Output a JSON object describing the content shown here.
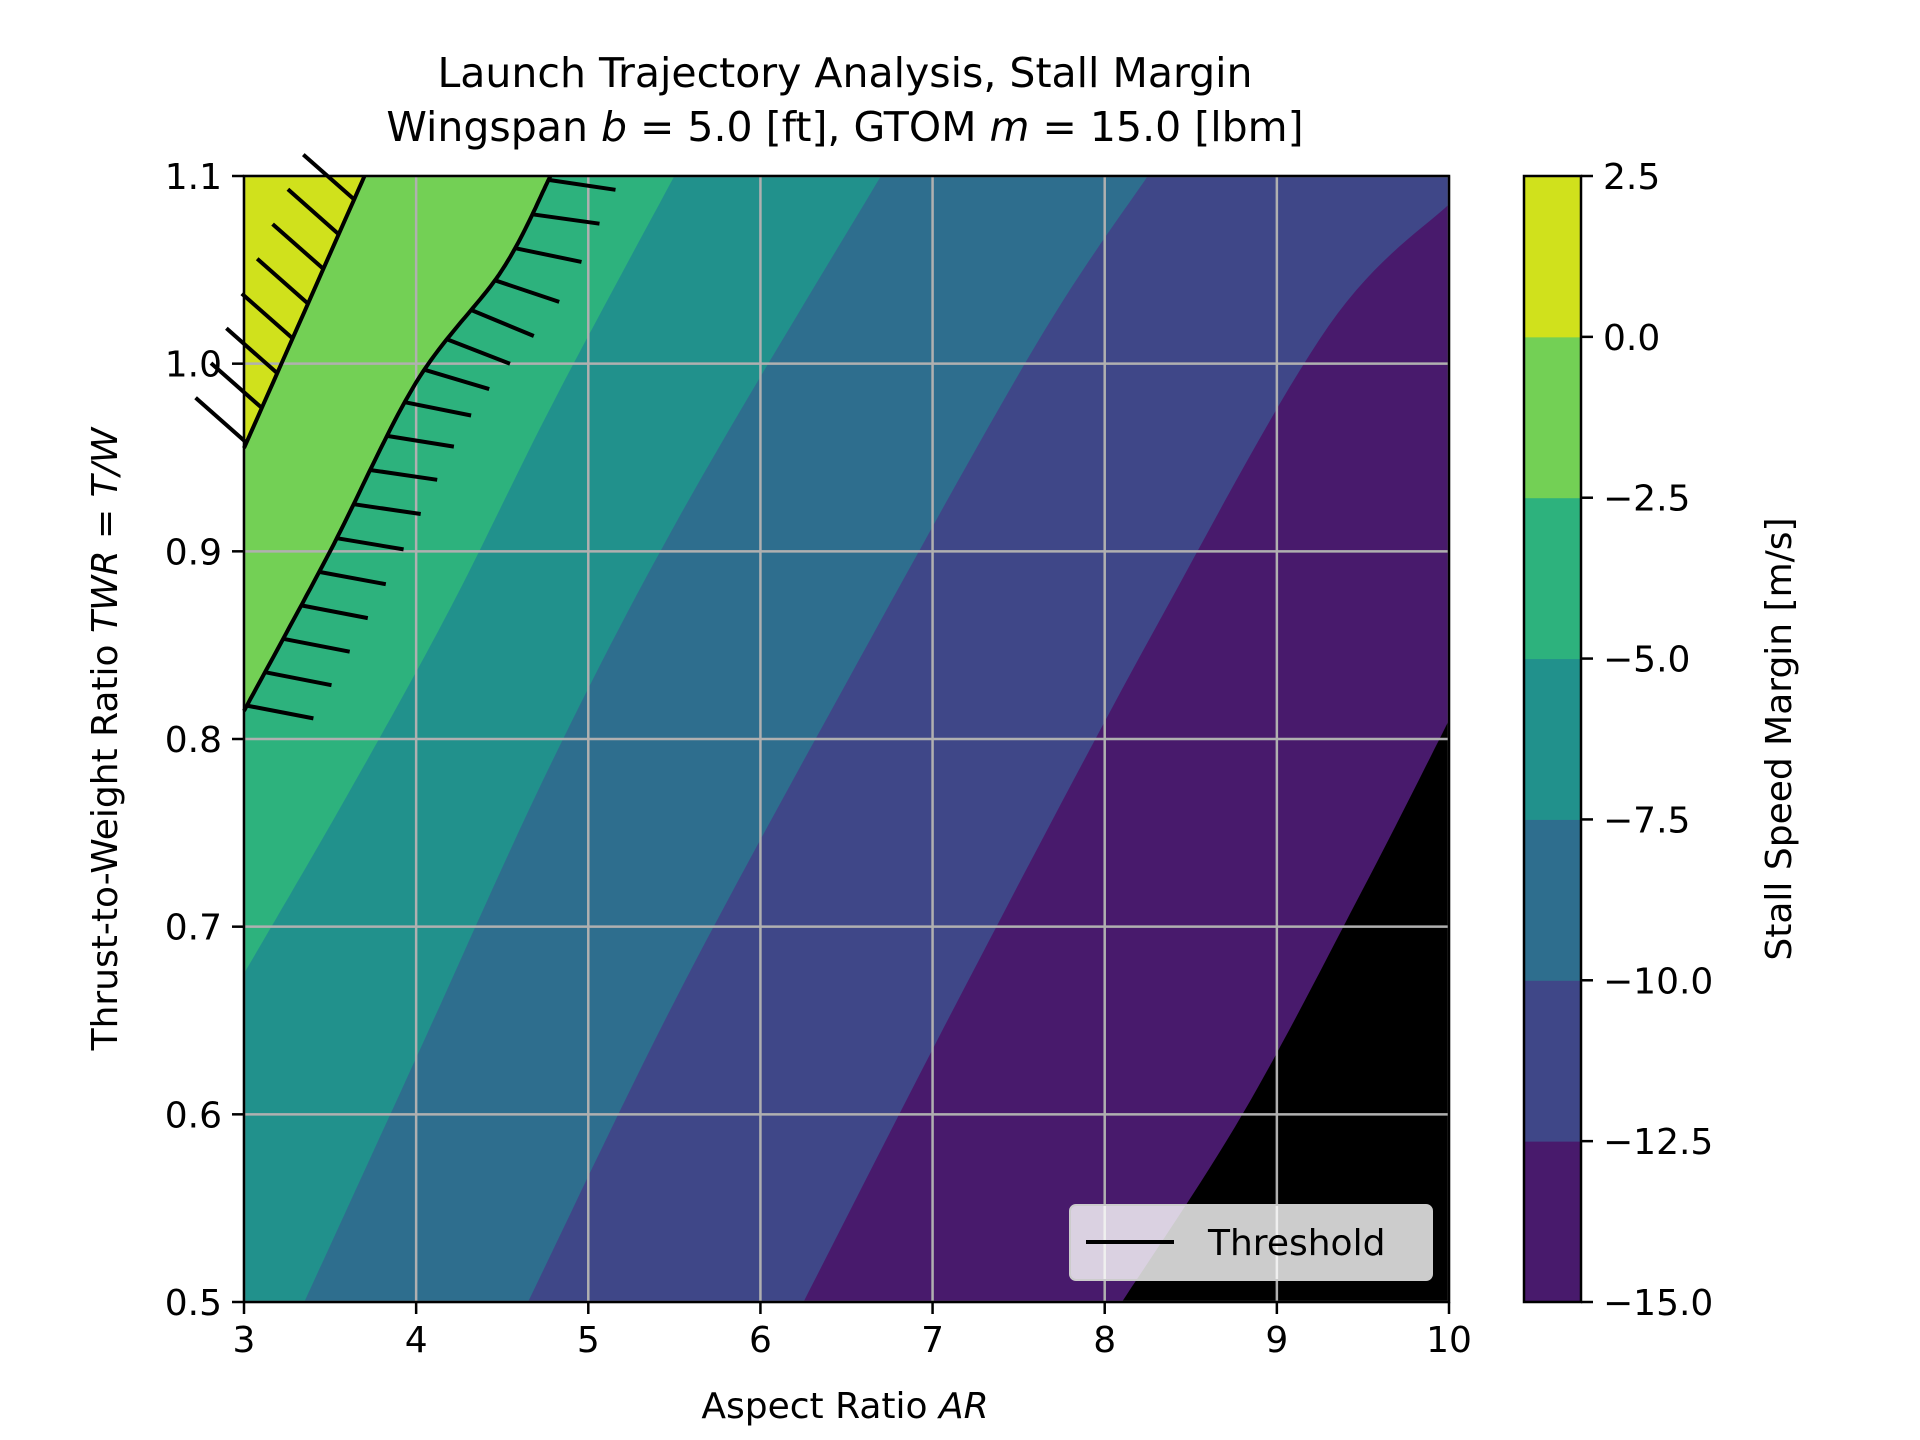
{
  "chart_data": {
    "type": "contour",
    "title": "Launch Trajectory Analysis, Stall Margin",
    "subtitle": {
      "prefix": "Wingspan ",
      "b_symbol": "b",
      "b_rest": " = 5.0 [ft], GTOM ",
      "m_symbol": "m",
      "m_rest": " = 15.0 [lbm]"
    },
    "xlabel": {
      "text": "Aspect Ratio ",
      "symbol": "AR"
    },
    "ylabel": {
      "text": "Thrust-to-Weight Ratio ",
      "symbol": "TWR",
      "rest": " = ",
      "symbol2": "T/W"
    },
    "xlim": [
      3,
      10
    ],
    "ylim": [
      0.5,
      1.1
    ],
    "x_ticks": [
      3,
      4,
      5,
      6,
      7,
      8,
      9,
      10
    ],
    "x_tick_labels": [
      "3",
      "4",
      "5",
      "6",
      "7",
      "8",
      "9",
      "10"
    ],
    "y_ticks": [
      0.5,
      0.6,
      0.7,
      0.8,
      0.9,
      1.0,
      1.1
    ],
    "y_tick_labels": [
      "0.5",
      "0.6",
      "0.7",
      "0.8",
      "0.9",
      "1.0",
      "1.1"
    ],
    "grid": true,
    "colorbar": {
      "label": "Stall Speed Margin [m/s]",
      "levels": [
        -15.0,
        -12.5,
        -10.0,
        -7.5,
        -5.0,
        -2.5,
        0.0,
        2.5
      ],
      "tick_labels": [
        "−15.0",
        "−12.5",
        "−10.0",
        "−7.5",
        "−5.0",
        "−2.5",
        "0.0",
        "2.5"
      ],
      "colors": [
        "#481a6c",
        "#3f4788",
        "#2e6e8e",
        "#21918c",
        "#2db27d",
        "#73d055",
        "#d0e11c"
      ]
    },
    "contour_boundaries": [
      {
        "level": 0.0,
        "points": [
          [
            3.0,
            0.955
          ],
          [
            3.7,
            1.1
          ]
        ]
      },
      {
        "level": -2.5,
        "points": [
          [
            3.0,
            0.815
          ],
          [
            3.5,
            0.9
          ],
          [
            4.0,
            0.99
          ],
          [
            4.5,
            1.05
          ],
          [
            4.78,
            1.1
          ]
        ]
      },
      {
        "level": -5.0,
        "points": [
          [
            3.0,
            0.675
          ],
          [
            3.6,
            0.77
          ],
          [
            4.2,
            0.87
          ],
          [
            4.8,
            0.98
          ],
          [
            5.5,
            1.1
          ]
        ]
      },
      {
        "level": -7.5,
        "points": [
          [
            3.35,
            0.5
          ],
          [
            4.0,
            0.63
          ],
          [
            4.8,
            0.79
          ],
          [
            5.6,
            0.93
          ],
          [
            6.7,
            1.1
          ]
        ]
      },
      {
        "level": -10.0,
        "points": [
          [
            4.65,
            0.5
          ],
          [
            5.5,
            0.66
          ],
          [
            6.5,
            0.83
          ],
          [
            7.6,
            1.01
          ],
          [
            8.25,
            1.1
          ]
        ]
      },
      {
        "level": -12.5,
        "points": [
          [
            6.25,
            0.5
          ],
          [
            7.2,
            0.67
          ],
          [
            8.3,
            0.86
          ],
          [
            9.3,
            1.02
          ],
          [
            10.0,
            1.085
          ]
        ]
      },
      {
        "level": -15.0,
        "points": [
          [
            8.1,
            0.5
          ],
          [
            8.8,
            0.6
          ],
          [
            9.5,
            0.72
          ],
          [
            10.0,
            0.81
          ]
        ]
      }
    ],
    "threshold": {
      "level": 0.0,
      "curves": [
        {
          "points": [
            [
              3.0,
              0.955
            ],
            [
              3.7,
              1.1
            ]
          ],
          "hatch_side": "left"
        },
        {
          "points": [
            [
              3.0,
              0.815
            ],
            [
              3.5,
              0.9
            ],
            [
              4.0,
              0.99
            ],
            [
              4.5,
              1.05
            ],
            [
              4.78,
              1.1
            ]
          ],
          "hatch_side": "right"
        }
      ]
    },
    "legend": {
      "label": "Threshold",
      "placement": "lower right"
    }
  }
}
